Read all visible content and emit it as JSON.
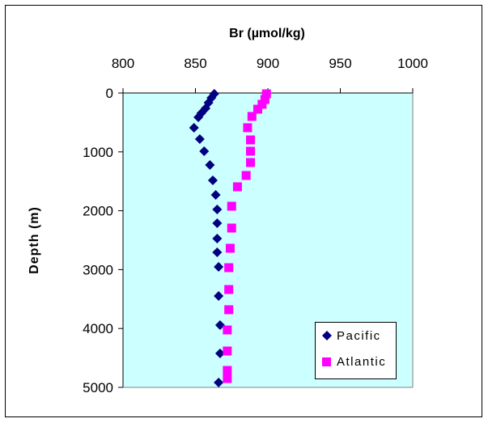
{
  "chart_data": {
    "type": "scatter",
    "title": "",
    "xlabel": "Br (µmol/kg)",
    "ylabel": "Depth (m)",
    "xlim": [
      800,
      1000
    ],
    "ylim": [
      0,
      5000
    ],
    "x_axis_position": "top",
    "y_axis_reversed": true,
    "xticks": [
      "800",
      "850",
      "900",
      "950",
      "1000"
    ],
    "yticks": [
      "0",
      "1000",
      "2000",
      "3000",
      "4000",
      "5000"
    ],
    "grid": false,
    "plot_background": "#ccffff",
    "legend_position": "bottom-right",
    "series": [
      {
        "name": "Pacific",
        "marker": "diamond",
        "color": "#000080",
        "points": [
          [
            863,
            14
          ],
          [
            861,
            82
          ],
          [
            859,
            165
          ],
          [
            857,
            261
          ],
          [
            854,
            343
          ],
          [
            852,
            412
          ],
          [
            849,
            590
          ],
          [
            853,
            783
          ],
          [
            856,
            989
          ],
          [
            860,
            1223
          ],
          [
            862,
            1484
          ],
          [
            864,
            1731
          ],
          [
            865,
            1978
          ],
          [
            865,
            2212
          ],
          [
            865,
            2473
          ],
          [
            865,
            2706
          ],
          [
            866,
            2953
          ],
          [
            866,
            3448
          ],
          [
            867,
            3942
          ],
          [
            867,
            4423
          ],
          [
            866,
            4918
          ]
        ]
      },
      {
        "name": "Atlantic",
        "marker": "square",
        "color": "#ff00ff",
        "points": [
          [
            899,
            14
          ],
          [
            898,
            110
          ],
          [
            896,
            192
          ],
          [
            893,
            275
          ],
          [
            889,
            398
          ],
          [
            886,
            590
          ],
          [
            888,
            797
          ],
          [
            888,
            989
          ],
          [
            888,
            1181
          ],
          [
            885,
            1401
          ],
          [
            879,
            1593
          ],
          [
            875,
            1923
          ],
          [
            875,
            2294
          ],
          [
            874,
            2637
          ],
          [
            873,
            2967
          ],
          [
            873,
            3338
          ],
          [
            873,
            3681
          ],
          [
            872,
            4025
          ],
          [
            872,
            4382
          ],
          [
            872,
            4712
          ],
          [
            872,
            4849
          ]
        ]
      }
    ]
  }
}
